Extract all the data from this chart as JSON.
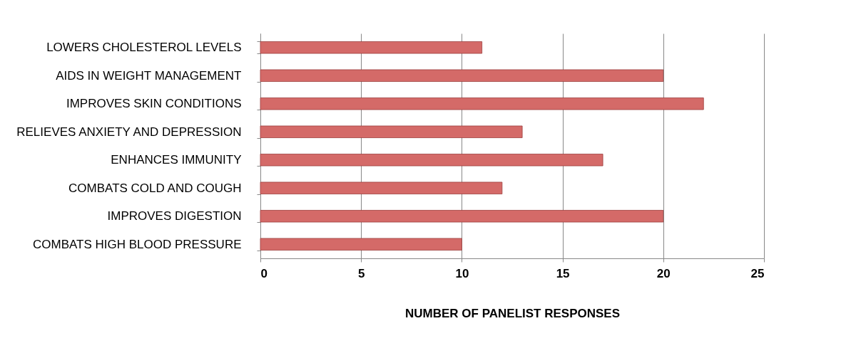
{
  "chart_data": {
    "type": "bar",
    "orientation": "horizontal",
    "xlabel": "NUMBER OF PANELIST RESPONSES",
    "categories": [
      "LOWERS CHOLESTEROL LEVELS",
      "AIDS IN WEIGHT MANAGEMENT",
      "IMPROVES SKIN CONDITIONS",
      "RELIEVES ANXIETY AND DEPRESSION",
      "ENHANCES IMMUNITY",
      "COMBATS COLD AND COUGH",
      "IMPROVES DIGESTION",
      "COMBATS HIGH BLOOD PRESSURE"
    ],
    "values": [
      11,
      20,
      22,
      13,
      17,
      12,
      20,
      10
    ],
    "color": "#d46a68",
    "xlim": [
      0,
      25
    ],
    "xticks": [
      0,
      5,
      10,
      15,
      20,
      25
    ],
    "grid": "x"
  }
}
